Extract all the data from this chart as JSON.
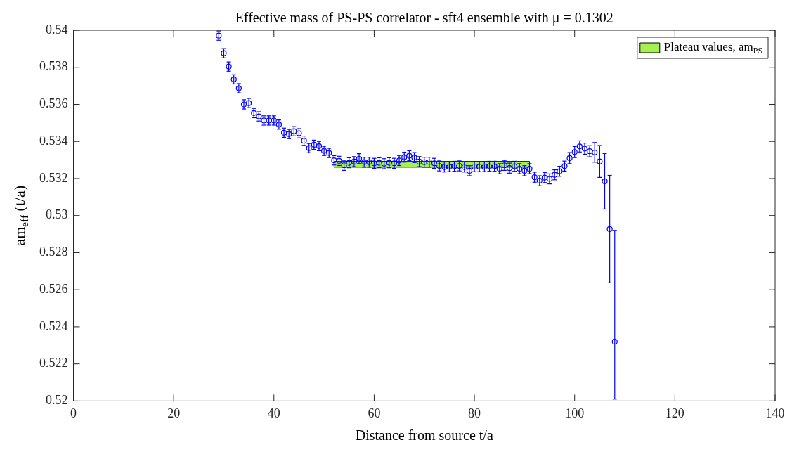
{
  "chart_data": {
    "type": "scatter",
    "title": "Effective mass of PS-PS correlator - sft4 ensemble with μ = 0.1302",
    "xlabel": "Distance from source t/a",
    "ylabel": "am$_{eff}$ (t/a)",
    "xlim": [
      0,
      140
    ],
    "xticks": [
      0,
      20,
      40,
      60,
      80,
      100,
      120,
      140
    ],
    "ylim": [
      0.52,
      0.54
    ],
    "yticks": [
      0.52,
      0.522,
      0.524,
      0.526,
      0.528,
      0.53,
      0.532,
      0.534,
      0.536,
      0.538,
      0.54
    ],
    "grid": false,
    "legend": "top right",
    "marker": "circle",
    "series": [
      {
        "color": "#0000ff",
        "x": [
          29,
          30,
          31,
          32,
          33,
          34,
          35,
          36,
          37,
          38,
          39,
          40,
          41,
          42,
          43,
          44,
          45,
          46,
          47,
          48,
          49,
          50,
          51,
          52,
          53,
          54,
          55,
          56,
          57,
          58,
          59,
          60,
          61,
          62,
          63,
          64,
          65,
          66,
          67,
          68,
          69,
          70,
          71,
          72,
          73,
          74,
          75,
          76,
          77,
          78,
          79,
          80,
          81,
          82,
          83,
          84,
          85,
          86,
          87,
          88,
          89,
          90,
          91,
          92,
          93,
          94,
          95,
          96,
          97,
          98,
          99,
          100,
          101,
          102,
          103,
          104,
          105,
          106,
          107,
          108
        ],
        "values": [
          0.53971,
          0.53876,
          0.53804,
          0.53735,
          0.53687,
          0.536,
          0.53607,
          0.53553,
          0.53535,
          0.53513,
          0.53513,
          0.53513,
          0.53491,
          0.53447,
          0.5344,
          0.53455,
          0.53444,
          0.53404,
          0.53364,
          0.53382,
          0.53375,
          0.53349,
          0.53338,
          0.53298,
          0.53295,
          0.53271,
          0.53285,
          0.53291,
          0.53307,
          0.53288,
          0.53288,
          0.53282,
          0.53285,
          0.5328,
          0.53285,
          0.53282,
          0.53297,
          0.53315,
          0.53323,
          0.53313,
          0.53291,
          0.53288,
          0.53288,
          0.53282,
          0.53268,
          0.53262,
          0.53264,
          0.53266,
          0.53268,
          0.53262,
          0.53242,
          0.53264,
          0.53264,
          0.53264,
          0.53266,
          0.53266,
          0.53253,
          0.53271,
          0.53256,
          0.53266,
          0.53253,
          0.53242,
          0.53253,
          0.53207,
          0.53188,
          0.53205,
          0.53198,
          0.5322,
          0.53239,
          0.53267,
          0.5331,
          0.53343,
          0.53373,
          0.53361,
          0.53347,
          0.53341,
          0.53292,
          0.53185,
          0.52927,
          0.5232
        ],
        "errors": [
          0.00025,
          0.00025,
          0.00025,
          0.00025,
          0.00025,
          0.00025,
          0.00025,
          0.00025,
          0.00025,
          0.00025,
          0.00025,
          0.00025,
          0.00025,
          0.00025,
          0.00025,
          0.00025,
          0.00025,
          0.00025,
          0.00025,
          0.00025,
          0.00025,
          0.00025,
          0.00025,
          0.00025,
          0.00025,
          0.00027,
          0.00027,
          0.00027,
          0.00027,
          0.00027,
          0.00027,
          0.00027,
          0.00027,
          0.00027,
          0.00027,
          0.00027,
          0.00027,
          0.00027,
          0.00027,
          0.00027,
          0.00027,
          0.00027,
          0.00027,
          0.00027,
          0.00027,
          0.00027,
          0.00027,
          0.00027,
          0.00027,
          0.00027,
          0.00027,
          0.00027,
          0.00027,
          0.00027,
          0.00027,
          0.00027,
          0.00027,
          0.00027,
          0.00027,
          0.00027,
          0.00027,
          0.00027,
          0.00027,
          0.00027,
          0.00027,
          0.00027,
          0.00027,
          0.00027,
          0.00027,
          0.00027,
          0.0003,
          0.0003,
          0.0003,
          0.0003,
          0.0003,
          0.00053,
          0.00086,
          0.0015,
          0.0029,
          [
            0.5201,
            0.5292
          ]
        ]
      },
      {
        "type": "line",
        "name": "Plateau values, am$_{PS}$",
        "color": "#a6f050",
        "line_style": "dashed",
        "marker": "none",
        "x": [
          52,
          91
        ],
        "values": [
          0.53277,
          0.53277
        ],
        "lower": [
          0.53261,
          0.53261
        ],
        "upper": [
          0.53292,
          0.53292
        ]
      }
    ]
  }
}
